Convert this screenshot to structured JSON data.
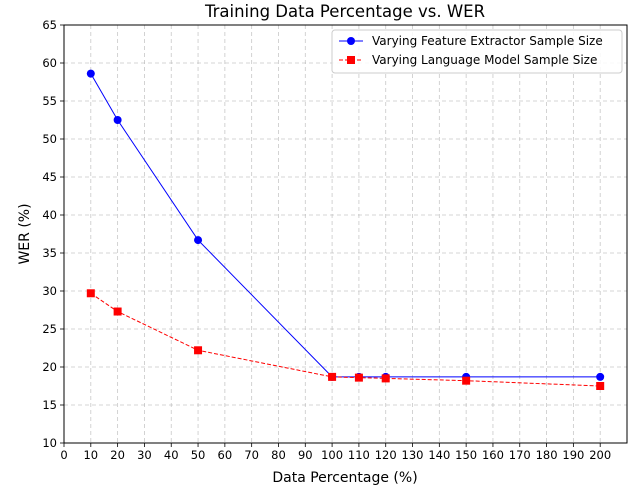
{
  "chart_data": {
    "type": "line",
    "title": "Training Data Percentage vs. WER",
    "xlabel": "Data Percentage (%)",
    "ylabel": "WER (%)",
    "xlim": [
      0,
      210
    ],
    "ylim": [
      10,
      65
    ],
    "xticks": [
      0,
      10,
      20,
      30,
      40,
      50,
      60,
      70,
      80,
      90,
      100,
      110,
      120,
      130,
      140,
      150,
      160,
      170,
      180,
      190,
      200
    ],
    "yticks": [
      10,
      15,
      20,
      25,
      30,
      35,
      40,
      45,
      50,
      55,
      60,
      65
    ],
    "grid": true,
    "legend_position": "top-right",
    "series": [
      {
        "name": "Varying Feature Extractor Sample Size",
        "color": "#0000ff",
        "line_style": "solid",
        "marker": "circle",
        "x": [
          10,
          20,
          50,
          100,
          110,
          120,
          150,
          200
        ],
        "y": [
          58.6,
          52.5,
          36.7,
          18.7,
          18.7,
          18.7,
          18.7,
          18.7
        ]
      },
      {
        "name": "Varying Language Model Sample Size",
        "color": "#ff0000",
        "line_style": "dashed",
        "marker": "square",
        "x": [
          10,
          20,
          50,
          100,
          110,
          120,
          150,
          200
        ],
        "y": [
          29.7,
          27.3,
          22.2,
          18.7,
          18.6,
          18.5,
          18.2,
          17.5
        ]
      }
    ]
  }
}
